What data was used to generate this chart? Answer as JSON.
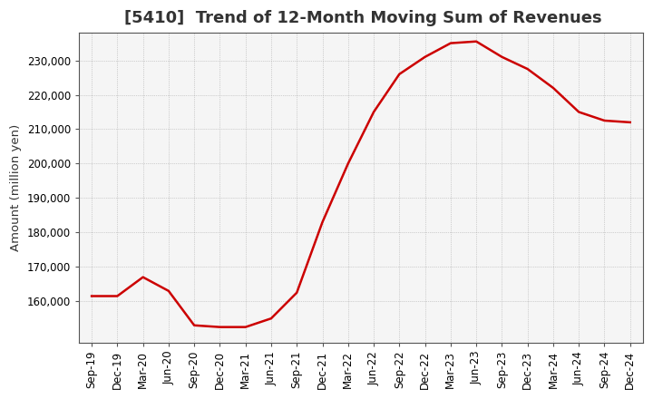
{
  "title": "[5410]  Trend of 12-Month Moving Sum of Revenues",
  "ylabel": "Amount (million yen)",
  "line_color": "#cc0000",
  "background_color": "#ffffff",
  "plot_background": "#f5f5f5",
  "grid_color": "#999999",
  "x_labels": [
    "Sep-19",
    "Dec-19",
    "Mar-20",
    "Jun-20",
    "Sep-20",
    "Dec-20",
    "Mar-21",
    "Jun-21",
    "Sep-21",
    "Dec-21",
    "Mar-22",
    "Jun-22",
    "Sep-22",
    "Dec-22",
    "Mar-23",
    "Jun-23",
    "Sep-23",
    "Dec-23",
    "Mar-24",
    "Jun-24",
    "Sep-24",
    "Dec-24"
  ],
  "values": [
    161500,
    161500,
    167000,
    163000,
    153000,
    152500,
    152500,
    155000,
    162500,
    183000,
    200000,
    215000,
    226000,
    231000,
    235000,
    235500,
    231000,
    227500,
    222000,
    215000,
    212500,
    212000
  ],
  "ylim_min": 148000,
  "ylim_max": 238000,
  "yticks": [
    160000,
    170000,
    180000,
    190000,
    200000,
    210000,
    220000,
    230000
  ],
  "title_fontsize": 13,
  "label_fontsize": 9.5,
  "tick_fontsize": 8.5,
  "line_width": 1.8
}
